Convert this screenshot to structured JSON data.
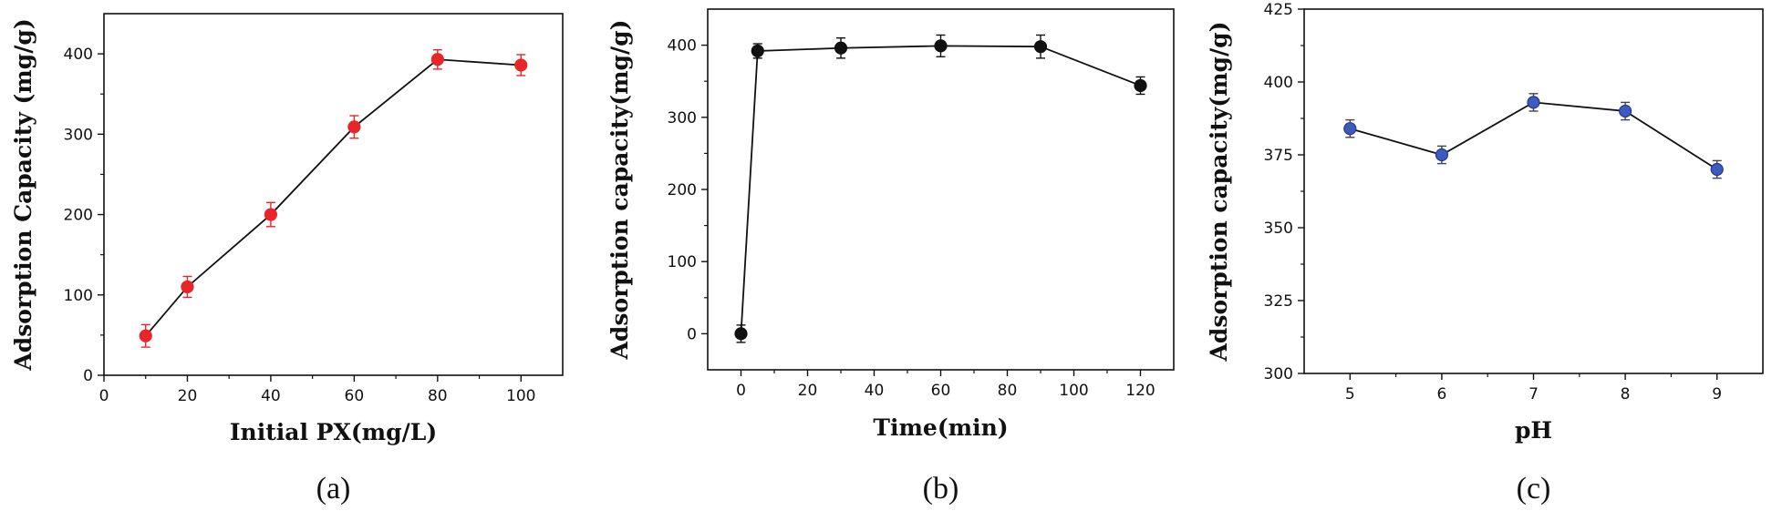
{
  "chart_data": [
    {
      "type": "line",
      "panel_label": "(a)",
      "xlabel": "Initial PX(mg/L)",
      "ylabel": "Adsorption Capacity (mg/g)",
      "xlim": [
        0,
        110
      ],
      "ylim": [
        0,
        450
      ],
      "xticks": [
        0,
        20,
        40,
        60,
        80,
        100
      ],
      "yticks": [
        0,
        100,
        200,
        300,
        400
      ],
      "grid": false,
      "series": [
        {
          "x": [
            10,
            20,
            40,
            60,
            80,
            100
          ],
          "y": [
            49,
            110,
            200,
            309,
            393,
            386
          ],
          "err": [
            14,
            13,
            15,
            14,
            12,
            13
          ],
          "color": "#e8262a",
          "error_color": "#e8262a"
        }
      ]
    },
    {
      "type": "line",
      "panel_label": "(b)",
      "xlabel": "Time(min)",
      "ylabel": "Adsorption capacity(mg/g)",
      "xlim": [
        -10,
        130
      ],
      "ylim": [
        -50,
        450
      ],
      "xticks": [
        0,
        20,
        40,
        60,
        80,
        100,
        120
      ],
      "yticks": [
        0,
        100,
        200,
        300,
        400
      ],
      "grid": false,
      "series": [
        {
          "x": [
            0,
            5,
            30,
            60,
            90,
            120
          ],
          "y": [
            0,
            392,
            396,
            399,
            398,
            344
          ],
          "err": [
            12,
            10,
            14,
            15,
            16,
            12
          ],
          "color": "#111111",
          "error_color": "#111111"
        }
      ]
    },
    {
      "type": "line",
      "panel_label": "(c)",
      "xlabel": "pH",
      "ylabel": "Adsorption capacity(mg/g)",
      "xlim": [
        4.5,
        9.5
      ],
      "ylim": [
        300,
        425
      ],
      "xticks": [
        5,
        6,
        7,
        8,
        9
      ],
      "yticks": [
        300,
        325,
        350,
        375,
        400,
        425
      ],
      "grid": false,
      "series": [
        {
          "x": [
            5,
            6,
            7,
            8,
            9
          ],
          "y": [
            384,
            375,
            393,
            390,
            370
          ],
          "err": [
            3,
            3,
            3,
            3,
            3
          ],
          "color": "#3e5ac0",
          "error_color": "#444444"
        }
      ]
    }
  ]
}
